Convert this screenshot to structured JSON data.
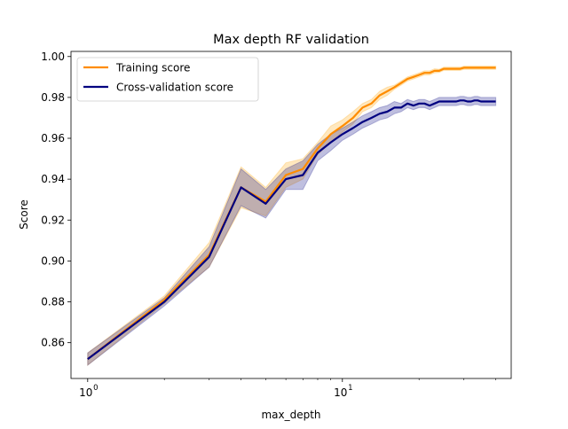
{
  "chart_data": {
    "type": "line",
    "title": "Max depth RF validation",
    "xlabel": "max_depth",
    "ylabel": "Score",
    "xscale": "log",
    "xlim": [
      0.86,
      46
    ],
    "ylim": [
      0.8425,
      1.0025
    ],
    "x_ticks": [
      {
        "value": 1,
        "base": "10",
        "exp": "0"
      },
      {
        "value": 10,
        "base": "10",
        "exp": "1"
      }
    ],
    "y_ticks": [
      "0.86",
      "0.88",
      "0.90",
      "0.92",
      "0.94",
      "0.96",
      "0.98",
      "1.00"
    ],
    "y_tick_values": [
      0.86,
      0.88,
      0.9,
      0.92,
      0.94,
      0.96,
      0.98,
      1.0
    ],
    "grid": false,
    "legend_position": "top-left",
    "x": [
      1,
      2,
      3,
      4,
      5,
      6,
      7,
      8,
      9,
      10,
      11,
      12,
      13,
      14,
      15,
      16,
      17,
      18,
      19,
      20,
      21,
      22,
      23,
      24,
      25,
      26,
      27,
      28,
      29,
      30,
      31,
      32,
      33,
      34,
      35,
      36,
      37,
      38,
      39,
      40
    ],
    "series": [
      {
        "name": "Training score",
        "color": "#ff8c00",
        "band_color": "#ffa500",
        "values": [
          0.852,
          0.881,
          0.903,
          0.936,
          0.929,
          0.942,
          0.945,
          0.955,
          0.962,
          0.966,
          0.97,
          0.975,
          0.977,
          0.981,
          0.983,
          0.985,
          0.987,
          0.989,
          0.99,
          0.991,
          0.992,
          0.992,
          0.993,
          0.993,
          0.994,
          0.994,
          0.994,
          0.994,
          0.994,
          0.9945,
          0.9945,
          0.9945,
          0.9945,
          0.9945,
          0.9945,
          0.9945,
          0.9945,
          0.9945,
          0.9945,
          0.9945
        ],
        "band": [
          0.003,
          0.002,
          0.006,
          0.01,
          0.007,
          0.006,
          0.005,
          0.003,
          0.004,
          0.003,
          0.003,
          0.002,
          0.002,
          0.002,
          0.002,
          0.001,
          0.001,
          0.001,
          0.001,
          0.001,
          0.001,
          0.001,
          0.001,
          0.0008,
          0.0008,
          0.0008,
          0.0008,
          0.0008,
          0.0008,
          0.0008,
          0.0008,
          0.0008,
          0.0008,
          0.0008,
          0.0008,
          0.0008,
          0.0008,
          0.0008,
          0.0008,
          0.0008
        ]
      },
      {
        "name": "Cross-validation score",
        "color": "#000080",
        "band_color": "#000080",
        "values": [
          0.852,
          0.88,
          0.902,
          0.936,
          0.928,
          0.94,
          0.942,
          0.953,
          0.958,
          0.962,
          0.965,
          0.968,
          0.97,
          0.972,
          0.973,
          0.975,
          0.975,
          0.977,
          0.976,
          0.977,
          0.977,
          0.976,
          0.977,
          0.978,
          0.978,
          0.978,
          0.978,
          0.978,
          0.9785,
          0.9785,
          0.978,
          0.978,
          0.9785,
          0.9785,
          0.978,
          0.978,
          0.978,
          0.978,
          0.978,
          0.978
        ],
        "band": [
          0.003,
          0.002,
          0.005,
          0.009,
          0.007,
          0.005,
          0.007,
          0.004,
          0.004,
          0.003,
          0.003,
          0.003,
          0.003,
          0.003,
          0.003,
          0.003,
          0.002,
          0.002,
          0.002,
          0.002,
          0.002,
          0.002,
          0.002,
          0.002,
          0.002,
          0.002,
          0.002,
          0.002,
          0.002,
          0.002,
          0.002,
          0.002,
          0.002,
          0.002,
          0.002,
          0.002,
          0.002,
          0.002,
          0.002,
          0.002
        ]
      }
    ]
  }
}
